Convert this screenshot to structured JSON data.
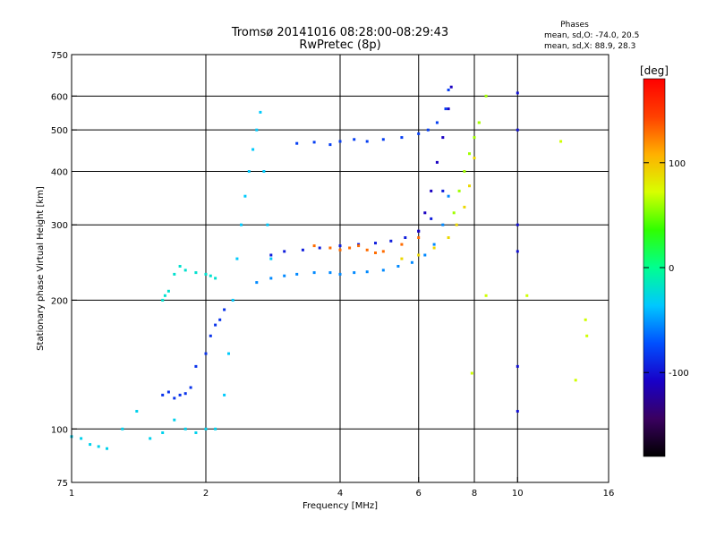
{
  "chart_data": {
    "type": "scatter",
    "title": "Tromsø 20141016 08:28:00-08:29:43",
    "subtitle": "RwPretec (8p)",
    "phases_label": "Phases",
    "phases_o": "mean, sd,O: -74.0, 20.5",
    "phases_x": "mean, sd,X:  88.9, 28.3",
    "xlabel": "Frequency [MHz]",
    "ylabel": "Stationary phase Virtual Height [km]",
    "x_scale": "log",
    "y_scale": "log",
    "xlim": [
      1,
      16
    ],
    "ylim": [
      75,
      750
    ],
    "x_ticks": [
      1,
      2,
      4,
      6,
      8,
      10,
      16
    ],
    "y_ticks": [
      75,
      100,
      200,
      300,
      400,
      500,
      600,
      750
    ],
    "x_grid": [
      2,
      4,
      6,
      8,
      10
    ],
    "y_grid": [
      100,
      200,
      300,
      400,
      500,
      600
    ],
    "grid": true,
    "colorbar": {
      "label": "[deg]",
      "range": [
        -180,
        180
      ],
      "ticks": [
        100,
        0,
        -100
      ],
      "colors": [
        "#000000",
        "#3a0060",
        "#1800c8",
        "#0050ff",
        "#00c8ff",
        "#00ff90",
        "#30ff00",
        "#d8ff00",
        "#ffb000",
        "#ff4000",
        "#ff0000"
      ]
    },
    "series": [
      {
        "x": [
          1.0,
          1.05,
          1.1,
          1.15,
          1.2,
          1.3,
          1.4,
          1.5,
          1.6,
          1.7,
          1.8,
          1.9,
          2.0,
          2.1
        ],
        "y": [
          96,
          95,
          92,
          91,
          90,
          100,
          110,
          95,
          98,
          105,
          100,
          98,
          100,
          100
        ],
        "phase": -30
      },
      {
        "x": [
          1.6,
          1.65,
          1.7,
          1.75,
          1.8,
          1.85,
          1.9,
          2.0,
          2.05,
          2.1,
          2.15,
          2.2
        ],
        "y": [
          120,
          122,
          118,
          120,
          121,
          125,
          140,
          150,
          165,
          175,
          180,
          190
        ],
        "phase": -85
      },
      {
        "x": [
          1.6,
          1.62,
          1.65,
          1.7,
          1.75,
          1.8,
          1.9,
          2.0,
          2.05,
          2.1
        ],
        "y": [
          200,
          205,
          210,
          230,
          240,
          235,
          232,
          230,
          228,
          225
        ],
        "phase": -20
      },
      {
        "x": [
          2.2,
          2.25,
          2.3,
          2.35,
          2.4,
          2.45,
          2.5,
          2.55,
          2.6,
          2.65,
          2.7,
          2.75,
          2.8
        ],
        "y": [
          120,
          150,
          200,
          250,
          300,
          350,
          400,
          450,
          500,
          550,
          400,
          300,
          250
        ],
        "phase": -35
      },
      {
        "x": [
          2.6,
          2.8,
          3.0,
          3.2,
          3.5,
          3.8,
          4.0,
          4.3,
          4.6,
          5.0,
          5.4,
          5.8,
          6.2,
          6.5,
          6.8,
          7.0
        ],
        "y": [
          220,
          225,
          228,
          230,
          232,
          232,
          230,
          232,
          233,
          235,
          240,
          245,
          255,
          270,
          300,
          350
        ],
        "phase": -55
      },
      {
        "x": [
          2.8,
          3.0,
          3.3,
          3.6,
          4.0,
          4.4,
          4.8,
          5.2,
          5.6,
          6.0,
          6.4,
          6.8
        ],
        "y": [
          255,
          260,
          262,
          265,
          268,
          270,
          272,
          275,
          280,
          290,
          310,
          360
        ],
        "phase": -95
      },
      {
        "x": [
          3.5,
          3.8,
          4.0,
          4.2,
          4.4,
          4.6,
          4.8,
          5.0,
          5.5,
          6.0
        ],
        "y": [
          268,
          265,
          262,
          265,
          268,
          262,
          258,
          260,
          270,
          280
        ],
        "phase": 130
      },
      {
        "x": [
          3.2,
          3.5,
          3.8,
          4.0,
          4.3,
          4.6,
          5.0,
          5.5,
          6.0,
          6.3,
          6.6,
          6.9,
          7.0
        ],
        "y": [
          465,
          468,
          462,
          470,
          475,
          470,
          475,
          480,
          490,
          500,
          520,
          560,
          620
        ],
        "phase": -80
      },
      {
        "x": [
          6.0,
          6.2,
          6.4,
          6.6,
          6.8,
          7.0,
          7.1
        ],
        "y": [
          290,
          320,
          360,
          420,
          480,
          560,
          630
        ],
        "phase": -110
      },
      {
        "x": [
          5.5,
          6.0,
          6.5,
          7.0,
          7.3,
          7.6,
          7.8,
          8.0,
          8.2
        ],
        "y": [
          250,
          255,
          265,
          280,
          300,
          330,
          370,
          430,
          520
        ],
        "phase": 90
      },
      {
        "x": [
          7.2,
          7.4,
          7.6,
          7.8,
          8.0,
          8.2,
          8.5
        ],
        "y": [
          320,
          360,
          400,
          440,
          480,
          520,
          600
        ],
        "phase": 60
      },
      {
        "x": [
          10.0,
          10.0,
          10.0,
          10.0,
          10.0,
          10.0
        ],
        "y": [
          610,
          500,
          300,
          260,
          140,
          110
        ],
        "phase": -100
      },
      {
        "x": [
          10.5,
          12.5,
          13.5,
          14.2,
          14.3,
          8.5,
          7.9
        ],
        "y": [
          205,
          470,
          130,
          180,
          165,
          205,
          135
        ],
        "phase": 70
      }
    ]
  }
}
